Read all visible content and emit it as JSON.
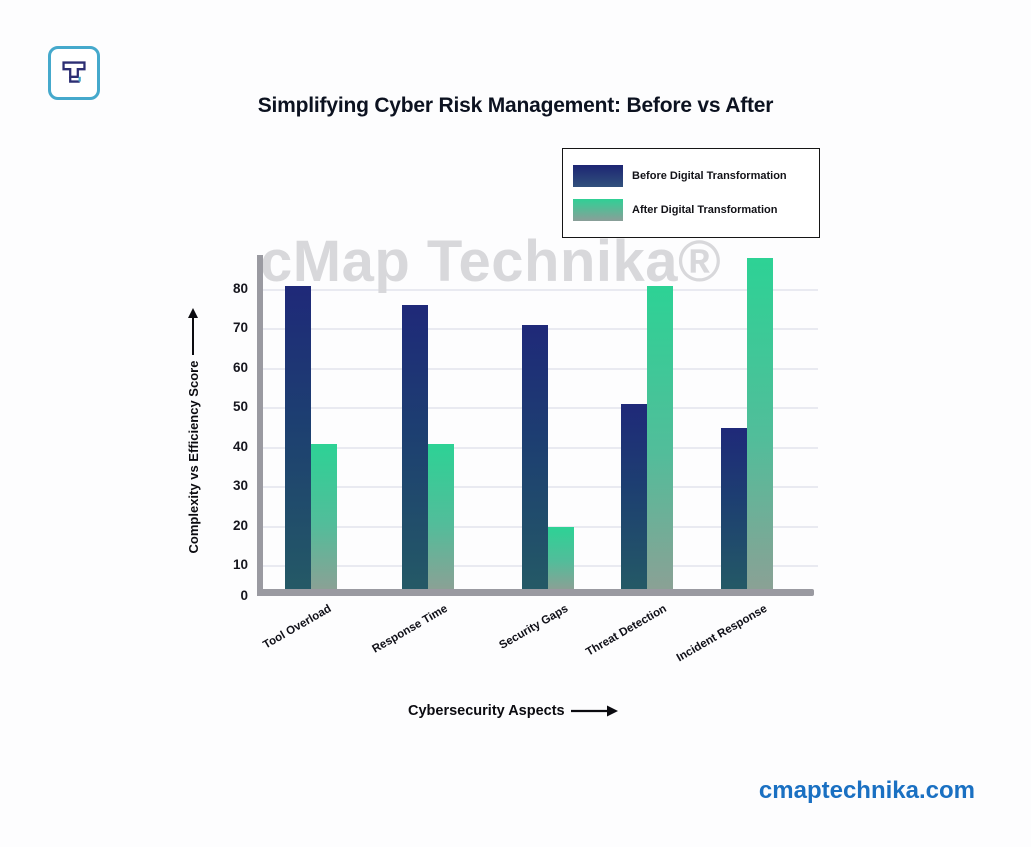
{
  "title": "Simplifying Cyber Risk Management: Before vs After",
  "legend": {
    "items": [
      {
        "label": "Before Digital Transformation",
        "color_top": "#1d2573",
        "color_bottom": "#31517c"
      },
      {
        "label": "After Digital Transformation",
        "color_top": "#2fd095",
        "color_bottom": "#8a9e98"
      }
    ]
  },
  "chart_data": {
    "type": "bar",
    "title": "Simplifying Cyber Risk Management: Before vs After",
    "categories": [
      "Tool Overload",
      "Response Time",
      "Security Gaps",
      "Threat Detection",
      "Incident Response"
    ],
    "series": [
      {
        "name": "Before Digital Transformation",
        "values": [
          81,
          76,
          71,
          51,
          45
        ]
      },
      {
        "name": "After Digital Transformation",
        "values": [
          41,
          41,
          20,
          81,
          88
        ]
      }
    ],
    "xlabel": "Cybersecurity Aspects",
    "ylabel": "Complexity vs Efficiency Score",
    "ylim": [
      0,
      90
    ],
    "yticks": [
      0,
      10,
      20,
      30,
      40,
      50,
      60,
      70,
      80
    ],
    "grid": true,
    "legend_position": "top-right"
  },
  "watermark": "cMap Technika®",
  "footer": {
    "website": "cmaptechnika.com"
  },
  "colors": {
    "before_bar_top": "#1f2979",
    "before_bar_bottom": "#245966",
    "after_bar_top": "#2dd295",
    "after_bar_bottom": "#8aa195",
    "axis_gray": "#9a9aa1",
    "gridline": "#e9eaf1",
    "watermark_gray": "#d8d8db",
    "link_blue": "#1a70c2",
    "logo_border_teal": "#45a9cc",
    "logo_mark_navy": "#2c2e73"
  }
}
